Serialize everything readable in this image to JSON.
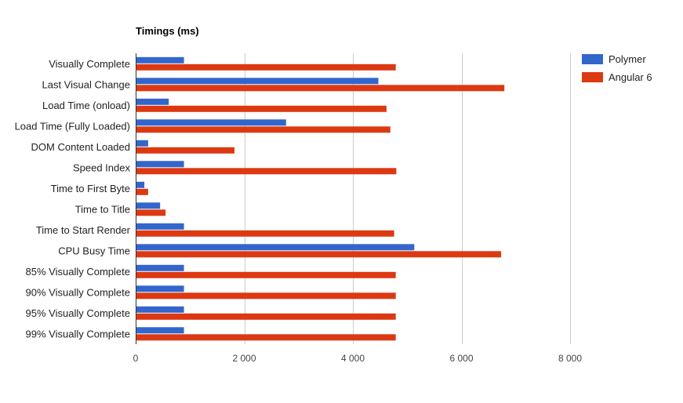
{
  "chart_data": {
    "type": "bar",
    "orientation": "horizontal",
    "title": "Timings (ms)",
    "xlabel": "",
    "ylabel": "",
    "xlim": [
      0,
      9000
    ],
    "ticks": [
      "0",
      "2 000",
      "4 000",
      "6 000",
      "8 000"
    ],
    "tick_values": [
      0,
      2000,
      4000,
      6000,
      8000
    ],
    "grid": true,
    "legend_position": "top-right",
    "categories": [
      "Visually Complete",
      "Last Visual Change",
      "Load Time (onload)",
      "Load Time (Fully Loaded)",
      "DOM Content Loaded",
      "Speed Index",
      "Time to First Byte",
      "Time to Title",
      "Time to Start Render",
      "CPU Busy Time",
      "85% Visually Complete",
      "90% Visually Complete",
      "95% Visually Complete",
      "99% Visually Complete"
    ],
    "series": [
      {
        "name": "Polymer",
        "color": "#3366cc",
        "values": [
          890,
          4470,
          610,
          2770,
          230,
          890,
          160,
          450,
          890,
          5130,
          890,
          890,
          890,
          890
        ]
      },
      {
        "name": "Angular 6",
        "color": "#dc3912",
        "values": [
          4790,
          6790,
          4620,
          4690,
          1820,
          4800,
          230,
          550,
          4760,
          6730,
          4790,
          4790,
          4790,
          4790
        ]
      }
    ]
  }
}
